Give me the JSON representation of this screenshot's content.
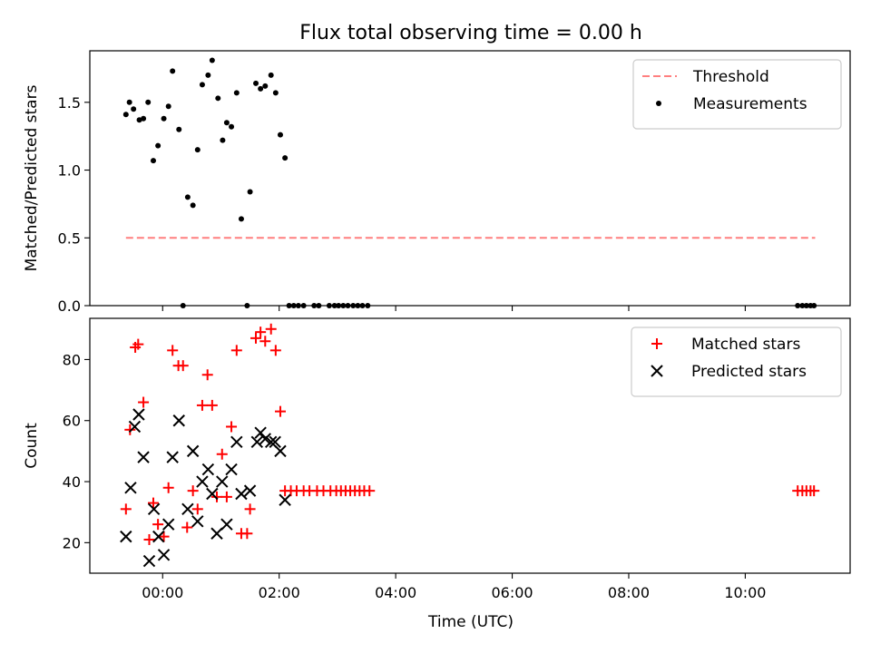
{
  "chart_data": {
    "title": "Flux total observing time = 0.00 h",
    "xlabel": "Time (UTC)",
    "x_ticks": [
      "00:00",
      "02:00",
      "04:00",
      "06:00",
      "08:00",
      "10:00"
    ],
    "x_tick_hours": [
      0,
      2,
      4,
      6,
      8,
      10
    ],
    "xlim_hours": [
      -1.25,
      11.8
    ],
    "panels": [
      {
        "type": "scatter",
        "ylabel": "Matched/Predicted stars",
        "ylim": [
          0,
          1.88
        ],
        "y_ticks": [
          "0.0",
          "0.5",
          "1.0",
          "1.5"
        ],
        "y_tick_values": [
          0,
          0.5,
          1.0,
          1.5
        ],
        "legend_position": "upper right",
        "threshold": {
          "name": "Threshold",
          "value": 0.5,
          "x_range_hours": [
            -0.63,
            11.2
          ],
          "color": "#ff7f7f"
        },
        "series": [
          {
            "name": "Measurements",
            "color": "#000000",
            "points": [
              [
                -0.63,
                1.41
              ],
              [
                -0.57,
                1.5
              ],
              [
                -0.5,
                1.45
              ],
              [
                -0.4,
                1.37
              ],
              [
                -0.33,
                1.38
              ],
              [
                -0.25,
                1.5
              ],
              [
                -0.16,
                1.07
              ],
              [
                -0.08,
                1.18
              ],
              [
                0.02,
                1.38
              ],
              [
                0.1,
                1.47
              ],
              [
                0.17,
                1.73
              ],
              [
                0.28,
                1.3
              ],
              [
                0.35,
                0.0
              ],
              [
                0.43,
                0.8
              ],
              [
                0.52,
                0.74
              ],
              [
                0.6,
                1.15
              ],
              [
                0.68,
                1.63
              ],
              [
                0.78,
                1.7
              ],
              [
                0.85,
                1.81
              ],
              [
                0.95,
                1.53
              ],
              [
                1.03,
                1.22
              ],
              [
                1.1,
                1.35
              ],
              [
                1.18,
                1.32
              ],
              [
                1.27,
                1.57
              ],
              [
                1.35,
                0.64
              ],
              [
                1.45,
                0.0
              ],
              [
                1.5,
                0.84
              ],
              [
                1.6,
                1.64
              ],
              [
                1.68,
                1.6
              ],
              [
                1.76,
                1.62
              ],
              [
                1.86,
                1.7
              ],
              [
                1.94,
                1.57
              ],
              [
                2.02,
                1.26
              ],
              [
                2.1,
                1.09
              ],
              [
                2.17,
                0.0
              ],
              [
                2.25,
                0.0
              ],
              [
                2.33,
                0.0
              ],
              [
                2.42,
                0.0
              ],
              [
                2.6,
                0.0
              ],
              [
                2.68,
                0.0
              ],
              [
                2.86,
                0.0
              ],
              [
                2.95,
                0.0
              ],
              [
                3.02,
                0.0
              ],
              [
                3.1,
                0.0
              ],
              [
                3.18,
                0.0
              ],
              [
                3.27,
                0.0
              ],
              [
                3.35,
                0.0
              ],
              [
                3.43,
                0.0
              ],
              [
                3.52,
                0.0
              ],
              [
                10.9,
                0.0
              ],
              [
                10.98,
                0.0
              ],
              [
                11.05,
                0.0
              ],
              [
                11.12,
                0.0
              ],
              [
                11.18,
                0.0
              ]
            ]
          }
        ]
      },
      {
        "type": "scatter",
        "ylabel": "Count",
        "ylim": [
          10,
          93.5
        ],
        "y_ticks": [
          "20",
          "40",
          "60",
          "80"
        ],
        "y_tick_values": [
          20,
          40,
          60,
          80
        ],
        "legend_position": "upper right",
        "series": [
          {
            "name": "Matched stars",
            "marker": "plus",
            "color": "#ff0000",
            "points": [
              [
                -0.63,
                31
              ],
              [
                -0.56,
                57
              ],
              [
                -0.47,
                84
              ],
              [
                -0.42,
                85
              ],
              [
                -0.33,
                66
              ],
              [
                -0.23,
                21
              ],
              [
                -0.16,
                33
              ],
              [
                -0.08,
                26
              ],
              [
                0.02,
                22
              ],
              [
                0.1,
                38
              ],
              [
                0.17,
                83
              ],
              [
                0.27,
                78
              ],
              [
                0.35,
                78
              ],
              [
                0.42,
                25
              ],
              [
                0.52,
                37
              ],
              [
                0.6,
                31
              ],
              [
                0.68,
                65
              ],
              [
                0.77,
                75
              ],
              [
                0.85,
                65
              ],
              [
                0.93,
                35
              ],
              [
                1.02,
                49
              ],
              [
                1.1,
                35
              ],
              [
                1.18,
                58
              ],
              [
                1.27,
                83
              ],
              [
                1.35,
                23
              ],
              [
                1.45,
                23
              ],
              [
                1.5,
                31
              ],
              [
                1.6,
                87
              ],
              [
                1.68,
                89
              ],
              [
                1.76,
                86
              ],
              [
                1.86,
                90
              ],
              [
                1.94,
                83
              ],
              [
                2.02,
                63
              ],
              [
                2.1,
                37
              ],
              [
                2.2,
                37
              ],
              [
                2.3,
                37
              ],
              [
                2.42,
                37
              ],
              [
                2.52,
                37
              ],
              [
                2.65,
                37
              ],
              [
                2.76,
                37
              ],
              [
                2.88,
                37
              ],
              [
                2.98,
                37
              ],
              [
                3.06,
                37
              ],
              [
                3.14,
                37
              ],
              [
                3.22,
                37
              ],
              [
                3.3,
                37
              ],
              [
                3.38,
                37
              ],
              [
                3.46,
                37
              ],
              [
                3.55,
                37
              ],
              [
                10.9,
                37
              ],
              [
                10.98,
                37
              ],
              [
                11.05,
                37
              ],
              [
                11.12,
                37
              ],
              [
                11.18,
                37
              ]
            ]
          },
          {
            "name": "Predicted stars",
            "marker": "x",
            "color": "#000000",
            "points": [
              [
                -0.63,
                22
              ],
              [
                -0.55,
                38
              ],
              [
                -0.48,
                58
              ],
              [
                -0.41,
                62
              ],
              [
                -0.33,
                48
              ],
              [
                -0.23,
                14
              ],
              [
                -0.15,
                31
              ],
              [
                -0.07,
                22
              ],
              [
                0.02,
                16
              ],
              [
                0.1,
                26
              ],
              [
                0.17,
                48
              ],
              [
                0.28,
                60
              ],
              [
                0.43,
                31
              ],
              [
                0.52,
                50
              ],
              [
                0.6,
                27
              ],
              [
                0.68,
                40
              ],
              [
                0.78,
                44
              ],
              [
                0.85,
                36
              ],
              [
                0.93,
                23
              ],
              [
                1.02,
                40
              ],
              [
                1.1,
                26
              ],
              [
                1.18,
                44
              ],
              [
                1.27,
                53
              ],
              [
                1.35,
                36
              ],
              [
                1.5,
                37
              ],
              [
                1.62,
                53
              ],
              [
                1.68,
                56
              ],
              [
                1.76,
                54
              ],
              [
                1.86,
                53
              ],
              [
                1.93,
                53
              ],
              [
                2.02,
                50
              ],
              [
                2.1,
                34
              ]
            ]
          }
        ]
      }
    ]
  }
}
